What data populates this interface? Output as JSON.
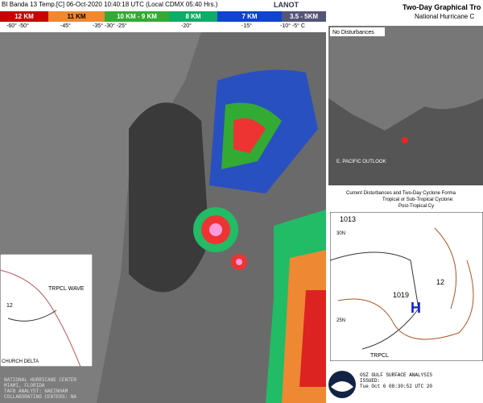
{
  "header": {
    "title": "BI Banda 13 Temp.[C] 06-Oct-2020 10:40:18 UTC (Local CDMX 05:40 Hrs.)",
    "logo": "LANOT",
    "scale": [
      {
        "height": "12 KM",
        "temp": "-60°  -50°"
      },
      {
        "height": "11 KM",
        "temp": "-45°"
      },
      {
        "height": "10 KM - 9 KM",
        "temp": "-35°   -30°   -25°"
      },
      {
        "height": "8 KM",
        "temp": "-20°"
      },
      {
        "height": "7 KM",
        "temp": "-15°"
      },
      {
        "height": "3.5 - 5KM",
        "temp": "-10°  -5°  C"
      }
    ]
  },
  "outlook": {
    "title": "Two-Day Graphical Tro",
    "subtitle": "National Hurricane C",
    "status": "No Disturbances",
    "region": "E. PACIFIC OUTLOOK",
    "legend_title": "Current Disturbances and Two-Day Cyclone Forma",
    "legend_1": "Tropical or Sub-Tropical Cyclone:",
    "legend_2": "Post-Tropical Cy"
  },
  "surface": {
    "isobar_1": "1013",
    "isobar_2": "1019",
    "high": "H",
    "isobar_3": "12",
    "lat_1": "30N",
    "lat_2": "25N",
    "feature": "TRPCL",
    "footer_1": "OSZ GULF SURFACE ANALYSIS",
    "footer_2": "ISSUED:",
    "footer_3": "Tue Oct 6 08:30:52 UTC 20"
  },
  "inset": {
    "label": "TRPCL WAVE",
    "value": "12",
    "place": "CHURCH DELTA",
    "credits": [
      "NATIONAL HURRICANE CENTER",
      "MIAMI, FLORIDA",
      "TAFB ANALYST: NAEINHAM",
      "COLLABORATING CENTERS: NA"
    ]
  }
}
